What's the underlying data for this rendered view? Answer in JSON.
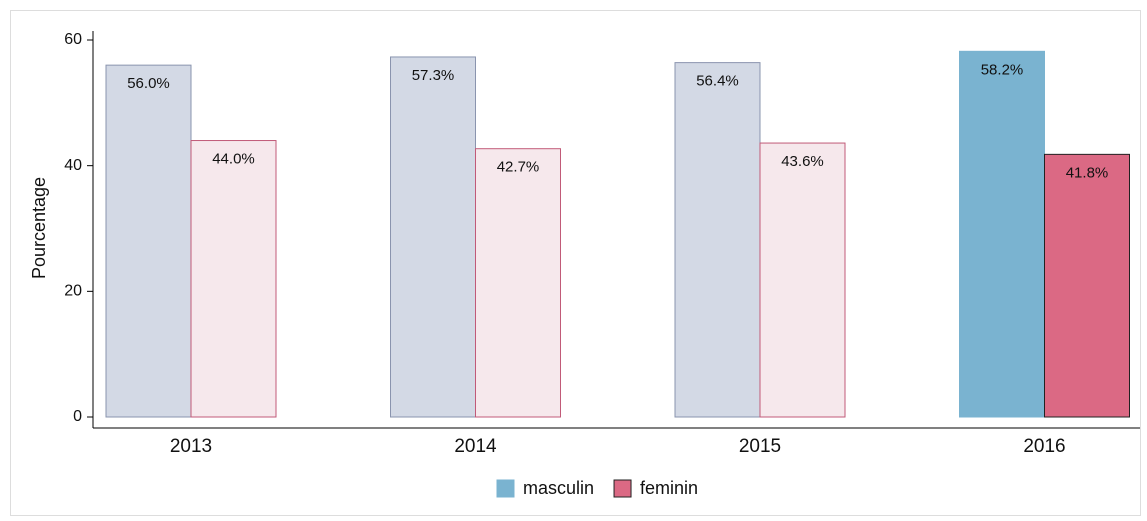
{
  "chart_data": {
    "type": "bar",
    "categories": [
      "2013",
      "2014",
      "2015",
      "2016"
    ],
    "y_label": "Pourcentage",
    "ylim": [
      0,
      60
    ],
    "yticks": [
      0,
      20,
      40,
      60
    ],
    "series": [
      {
        "name": "masculin",
        "color": "#7ab3d0",
        "values": [
          56.0,
          57.3,
          56.4,
          58.2
        ],
        "value_labels": [
          "56.0%",
          "57.3%",
          "56.4%",
          "58.2%"
        ],
        "bar_colors": [
          "#d3d9e5",
          "#d3d9e5",
          "#d3d9e5",
          "#7ab3d0"
        ],
        "bar_edge_colors": [
          "#8a94ae",
          "#8a94ae",
          "#8a94ae",
          "#7ab3d0"
        ]
      },
      {
        "name": "feminin",
        "color": "#db6984",
        "values": [
          44.0,
          42.7,
          43.6,
          41.8
        ],
        "value_labels": [
          "44.0%",
          "42.7%",
          "43.6%",
          "41.8%"
        ],
        "bar_colors": [
          "#f6e8ec",
          "#f6e8ec",
          "#f6e8ec",
          "#db6984"
        ],
        "bar_edge_colors": [
          "#c15a78",
          "#c15a78",
          "#c15a78",
          "#222222"
        ]
      }
    ]
  }
}
